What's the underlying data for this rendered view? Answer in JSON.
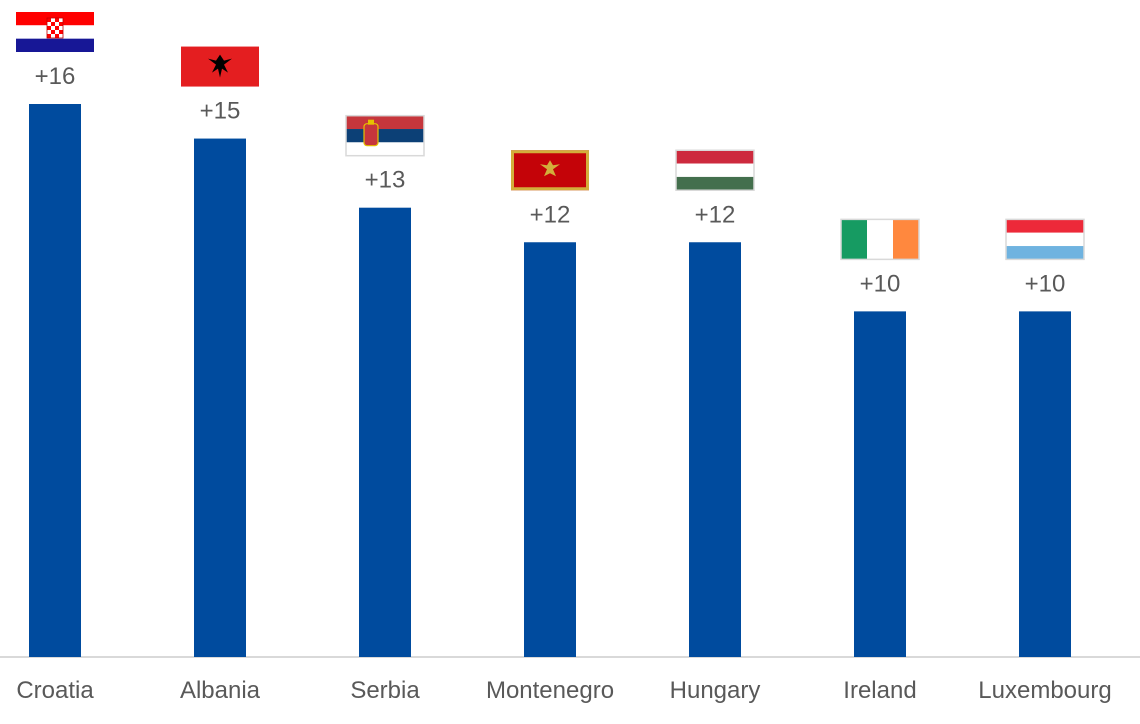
{
  "chart_data": {
    "type": "bar",
    "title": "",
    "xlabel": "",
    "ylabel": "",
    "ylim": [
      0,
      16
    ],
    "grid": false,
    "legend": "none",
    "categories": [
      "Croatia",
      "Albania",
      "Serbia",
      "Montenegro",
      "Hungary",
      "Ireland",
      "Luxembourg"
    ],
    "values": [
      16,
      15,
      13,
      12,
      12,
      10,
      10
    ],
    "data_labels": [
      "+16",
      "+15",
      "+13",
      "+12",
      "+12",
      "+10",
      "+10"
    ],
    "flag_icons": [
      "croatia-flag-icon",
      "albania-flag-icon",
      "serbia-flag-icon",
      "montenegro-flag-icon",
      "hungary-flag-icon",
      "ireland-flag-icon",
      "luxembourg-flag-icon"
    ]
  },
  "colors": {
    "bar": "#004b9e",
    "axis": "#d9d9d9",
    "text": "#595959"
  }
}
